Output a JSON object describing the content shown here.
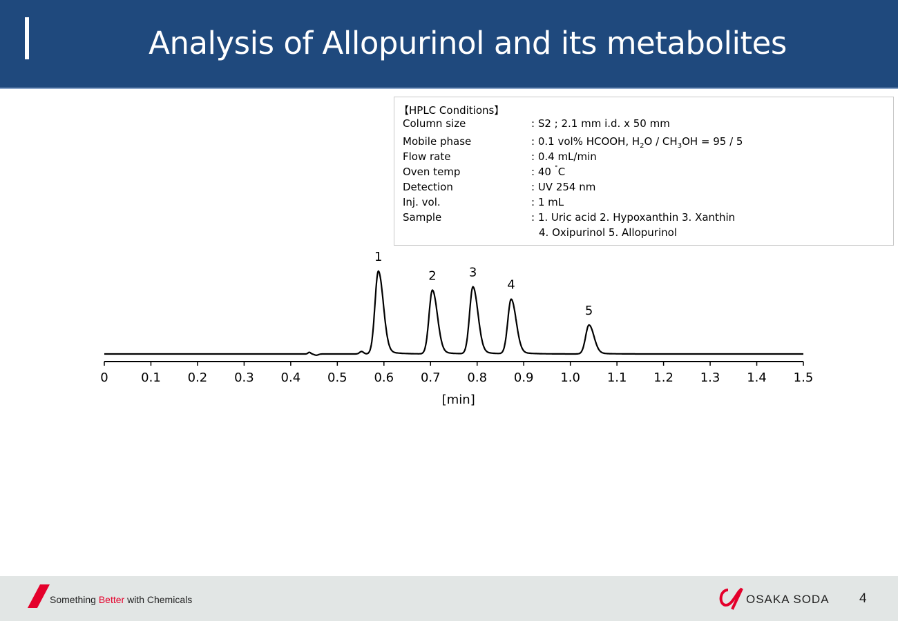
{
  "header": {
    "title": "Analysis of Allopurinol and its metabolites"
  },
  "conditions": {
    "title": "【HPLC Conditions】",
    "rows": [
      {
        "label": "Column size",
        "value": ": S2 ; 2.1 mm i.d. x 50 mm"
      },
      {
        "label": "Mobile phase",
        "value_parts": [
          ": 0.1 vol% HCOOH, H",
          "2",
          "O / CH",
          "3",
          "OH = 95 / 5"
        ]
      },
      {
        "label": "Flow rate",
        "value": ": 0.4 mL/min"
      },
      {
        "label": "Oven temp",
        "value_parts": [
          ": 40 ",
          "˚",
          "C"
        ]
      },
      {
        "label": "Detection",
        "value": ": UV 254 nm"
      },
      {
        "label": "Inj. vol.",
        "value": ": 1 mL"
      },
      {
        "label": "Sample",
        "value": ": 1. Uric acid 2. Hypoxanthin 3. Xanthin",
        "value2": "4. Oxipurinol 5. Allopurinol"
      }
    ]
  },
  "chart_data": {
    "type": "line",
    "title": "",
    "xlabel": "[min]",
    "ylabel": "",
    "xlim": [
      0,
      1.5
    ],
    "x_ticks": [
      "0",
      "0.1",
      "0.2",
      "0.3",
      "0.4",
      "0.5",
      "0.6",
      "0.7",
      "0.8",
      "0.9",
      "1.0",
      "1.1",
      "1.2",
      "1.3",
      "1.4",
      "1.5"
    ],
    "y_axis_shown": false,
    "grid": false,
    "line_color": "#000000",
    "peaks": [
      {
        "label": "1",
        "retention_time": 0.588,
        "relative_height": 100
      },
      {
        "label": "2",
        "retention_time": 0.704,
        "relative_height": 77
      },
      {
        "label": "3",
        "retention_time": 0.791,
        "relative_height": 81
      },
      {
        "label": "4",
        "retention_time": 0.873,
        "relative_height": 66
      },
      {
        "label": "5",
        "retention_time": 1.04,
        "relative_height": 35
      }
    ]
  },
  "footer": {
    "slogan_pre": "Something ",
    "slogan_red": "Better",
    "slogan_post": " with Chemicals",
    "brand": "OSAKA SODA",
    "page_number": "4",
    "accent_color": "#e4002b"
  }
}
